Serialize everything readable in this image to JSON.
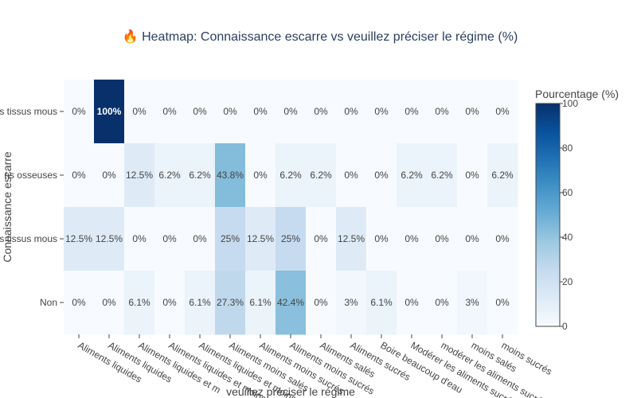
{
  "chart_data": {
    "type": "heatmap",
    "title": "🔥 Heatmap: Connaissance escarre vs veuillez préciser le régime (%)",
    "xlabel": "veuillez préciser le régime",
    "ylabel": "Connaissance escarre",
    "x_categories": [
      "Aliments liquides",
      "Aliments liquides",
      "Aliments liquides et m",
      "Aliments liquides et moins",
      "Aliments liquides et moins salés",
      "Aliments moins salés",
      "Aliments moins sucrés",
      "Aliments moins sucrés",
      "Aliments salés",
      "Aliments sucrés",
      "Boire beaucoup d'eau",
      "Modérer les aliments sucrés",
      "modérer les aliments sucrés",
      "moins salés",
      "moins sucrés"
    ],
    "y_categories": [
      "s tissus mous",
      "ns osseuses",
      "s tissus mous",
      "Non"
    ],
    "values": [
      [
        0,
        100,
        0,
        0,
        0,
        0,
        0,
        0,
        0,
        0,
        0,
        0,
        0,
        0,
        0
      ],
      [
        0,
        0,
        12.5,
        6.2,
        6.2,
        43.8,
        0,
        6.2,
        6.2,
        0,
        0,
        6.2,
        6.2,
        0,
        6.2
      ],
      [
        12.5,
        12.5,
        0,
        0,
        0,
        25,
        12.5,
        25,
        0,
        12.5,
        0,
        0,
        0,
        0,
        0
      ],
      [
        0,
        0,
        6.1,
        0,
        6.1,
        27.3,
        6.1,
        42.4,
        0,
        3,
        6.1,
        0,
        0,
        3,
        0
      ]
    ],
    "cell_labels": [
      [
        "0%",
        "100%",
        "0%",
        "0%",
        "0%",
        "0%",
        "0%",
        "0%",
        "0%",
        "0%",
        "0%",
        "0%",
        "0%",
        "0%",
        "0%"
      ],
      [
        "0%",
        "0%",
        "12.5%",
        "6.2%",
        "6.2%",
        "43.8%",
        "0%",
        "6.2%",
        "6.2%",
        "0%",
        "0%",
        "6.2%",
        "6.2%",
        "0%",
        "6.2%"
      ],
      [
        "12.5%",
        "12.5%",
        "0%",
        "0%",
        "0%",
        "25%",
        "12.5%",
        "25%",
        "0%",
        "12.5%",
        "0%",
        "0%",
        "0%",
        "0%",
        "0%"
      ],
      [
        "0%",
        "0%",
        "6.1%",
        "0%",
        "6.1%",
        "27.3%",
        "6.1%",
        "42.4%",
        "0%",
        "3%",
        "6.1%",
        "0%",
        "0%",
        "3%",
        "0%"
      ]
    ],
    "colorbar": {
      "title": "Pourcentage (%)",
      "range": [
        0,
        100
      ],
      "ticks": [
        "0",
        "20",
        "40",
        "60",
        "80",
        "100"
      ]
    },
    "colorscale": [
      "#f7fbff",
      "#deebf7",
      "#c6dbef",
      "#9ecae1",
      "#6baed6",
      "#4292c6",
      "#2171b5",
      "#08519c",
      "#08306b"
    ]
  }
}
